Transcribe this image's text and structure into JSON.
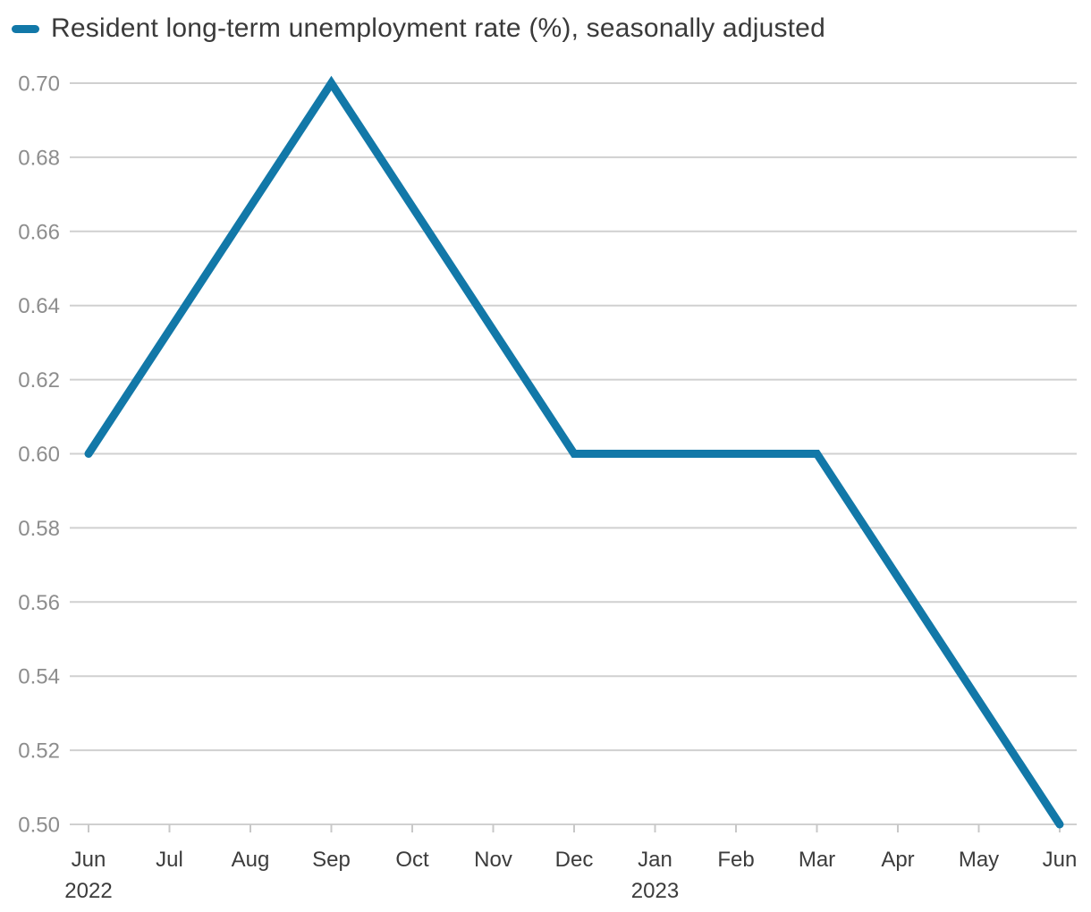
{
  "legend": {
    "marker_color": "#1278a8",
    "label": "Resident long-term unemployment rate (%), seasonally adjusted"
  },
  "chart_data": {
    "type": "line",
    "title": "",
    "xlabel": "",
    "ylabel": "",
    "ylim": [
      0.5,
      0.7
    ],
    "grid": "horizontal",
    "legend_position": "top-left",
    "series": [
      {
        "name": "Resident long-term unemployment rate (%), seasonally adjusted",
        "color": "#1278a8",
        "points": [
          {
            "label": "Jun 2022",
            "month_index": 0,
            "value": 0.6
          },
          {
            "label": "Sep 2022",
            "month_index": 3,
            "value": 0.7
          },
          {
            "label": "Dec 2022",
            "month_index": 6,
            "value": 0.6
          },
          {
            "label": "Mar 2023",
            "month_index": 9,
            "value": 0.6
          },
          {
            "label": "Jun 2023",
            "month_index": 12,
            "value": 0.5
          }
        ]
      }
    ],
    "x_ticks": [
      {
        "label": "Jun",
        "year": "2022"
      },
      {
        "label": "Jul"
      },
      {
        "label": "Aug"
      },
      {
        "label": "Sep"
      },
      {
        "label": "Oct"
      },
      {
        "label": "Nov"
      },
      {
        "label": "Dec"
      },
      {
        "label": "Jan",
        "year": "2023"
      },
      {
        "label": "Feb"
      },
      {
        "label": "Mar"
      },
      {
        "label": "Apr"
      },
      {
        "label": "May"
      },
      {
        "label": "Jun"
      }
    ],
    "y_tick_labels": [
      "0.70",
      "0.68",
      "0.66",
      "0.64",
      "0.62",
      "0.60",
      "0.58",
      "0.56",
      "0.54",
      "0.52",
      "0.50"
    ],
    "colors": {
      "line": "#1278a8",
      "grid": "#d0d0d0",
      "axis_tick": "#c8c8c8",
      "y_label": "#8d8d8d",
      "x_label": "#3c3c3c"
    }
  }
}
